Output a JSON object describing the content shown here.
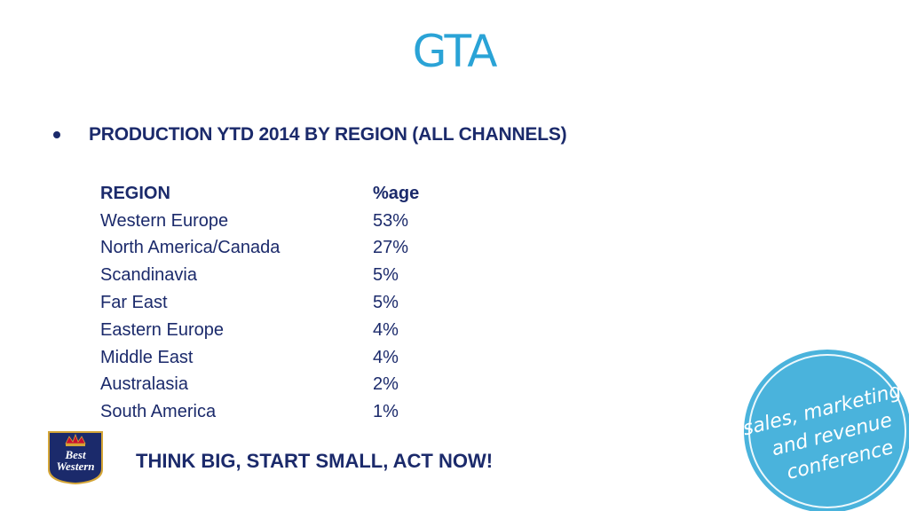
{
  "slide": {
    "title": "GTA",
    "bullet": "PRODUCTION YTD 2014 BY REGION (ALL CHANNELS)",
    "table": {
      "headers": [
        "REGION",
        "%age"
      ],
      "rows": [
        [
          "Western Europe",
          "53%"
        ],
        [
          "North America/Canada",
          "27%"
        ],
        [
          "Scandinavia",
          "5%"
        ],
        [
          "Far East",
          "5%"
        ],
        [
          "Eastern Europe",
          "4%"
        ],
        [
          "Middle East",
          "4%"
        ],
        [
          "Australasia",
          "2%"
        ],
        [
          "South America",
          "1%"
        ]
      ]
    },
    "tagline": "THINK BIG, START SMALL, ACT NOW!",
    "logo": {
      "line1": "Best",
      "line2": "Western"
    },
    "badge": {
      "line1": "sales, marketing",
      "line2": "and revenue",
      "line3": "conference"
    }
  },
  "colors": {
    "title": "#2aa3d6",
    "text": "#1b2a6b",
    "badge": "#4ab3dc",
    "logo_bg": "#1b2a6b",
    "logo_accent": "#c8102e",
    "logo_gold": "#d4a537"
  }
}
